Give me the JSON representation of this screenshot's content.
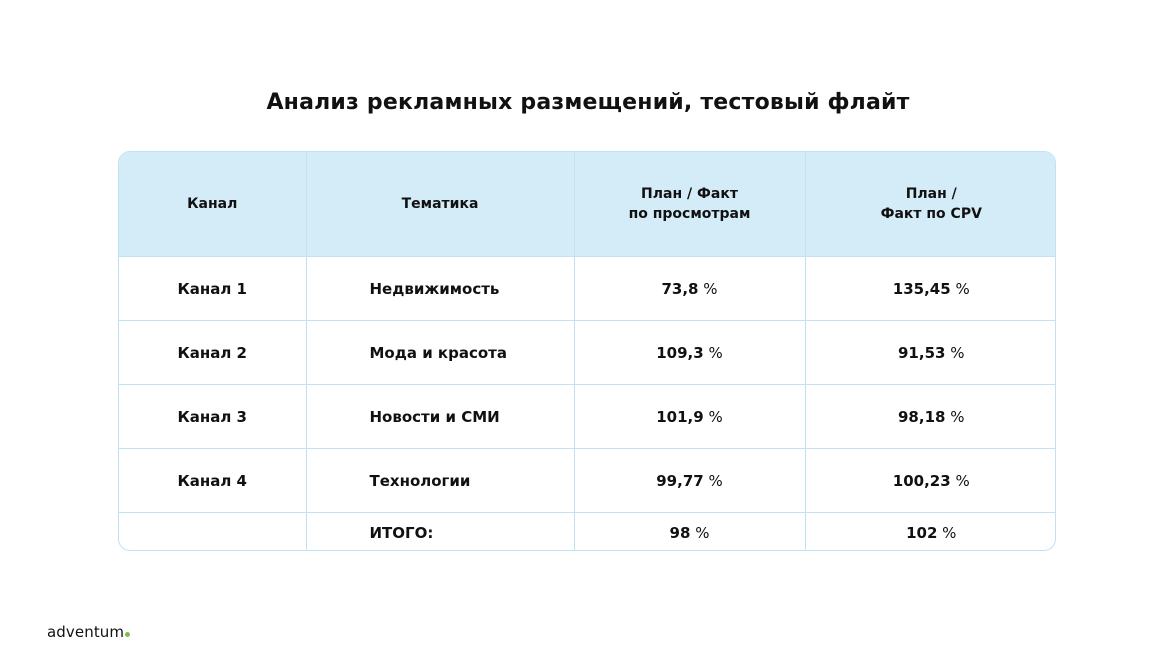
{
  "title": "Анализ рекламных размещений, тестовый флайт",
  "table": {
    "headers": {
      "channel": "Канал",
      "topic": "Тематика",
      "views_line1": "План / Факт",
      "views_line2": "по просмотрам",
      "cpv_line1": "План /",
      "cpv_line2": "Факт по CPV"
    },
    "rows": [
      {
        "channel": "Канал 1",
        "topic": "Недвижимость",
        "views": "73,8",
        "cpv": "135,45"
      },
      {
        "channel": "Канал 2",
        "topic": "Мода и красота",
        "views": "109,3",
        "cpv": "91,53"
      },
      {
        "channel": "Канал 3",
        "topic": "Новости и СМИ",
        "views": "101,9",
        "cpv": "98,18"
      },
      {
        "channel": "Канал 4",
        "topic": "Технологии",
        "views": "99,77",
        "cpv": "100,23"
      }
    ],
    "percent_sign": " %",
    "total": {
      "channel": "",
      "label": "ИТОГО:",
      "views": "98",
      "cpv": "102"
    }
  },
  "brand": {
    "name": "adventum",
    "dot_color": "#7cc04a"
  },
  "colors": {
    "header_bg": "#d3ecf8",
    "border": "#bfe3f2"
  }
}
